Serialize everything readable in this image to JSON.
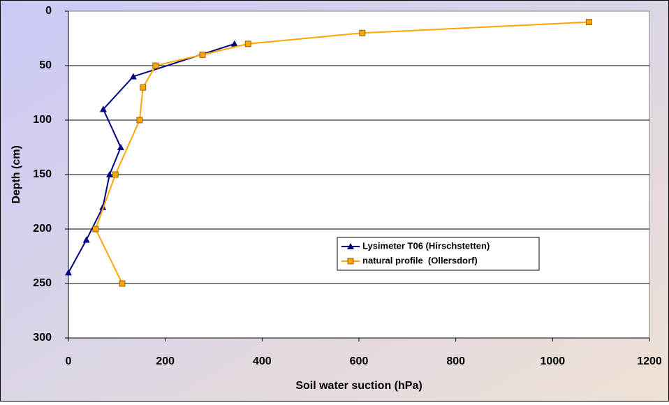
{
  "chart_data": {
    "type": "line",
    "x_label": "Soil water suction (hPa)",
    "y_label": "Depth (cm)",
    "xlim": [
      0,
      1200
    ],
    "xticks": [
      0,
      200,
      400,
      600,
      800,
      1000,
      1200
    ],
    "ylim": [
      0,
      300
    ],
    "yticks": [
      0,
      50,
      100,
      150,
      200,
      250,
      300
    ],
    "y_inverted": true,
    "grid": "horizontal",
    "legend": "lower-center",
    "series": [
      {
        "name": "Lysimeter T06 (Hirschstetten)",
        "color": "#000080",
        "marker": "triangle",
        "x": [
          343,
          134,
          72,
          108,
          85,
          71,
          37,
          0
        ],
        "values": [
          30,
          60,
          90,
          125,
          150,
          180,
          210,
          240
        ]
      },
      {
        "name": "natural profile  (Ollersdorf)",
        "color": "#ffa500",
        "marker": "square",
        "x": [
          1075,
          607,
          371,
          277,
          180,
          154,
          147,
          97,
          56,
          111
        ],
        "values": [
          10,
          20,
          30,
          40,
          50,
          70,
          100,
          150,
          200,
          250
        ]
      }
    ]
  }
}
